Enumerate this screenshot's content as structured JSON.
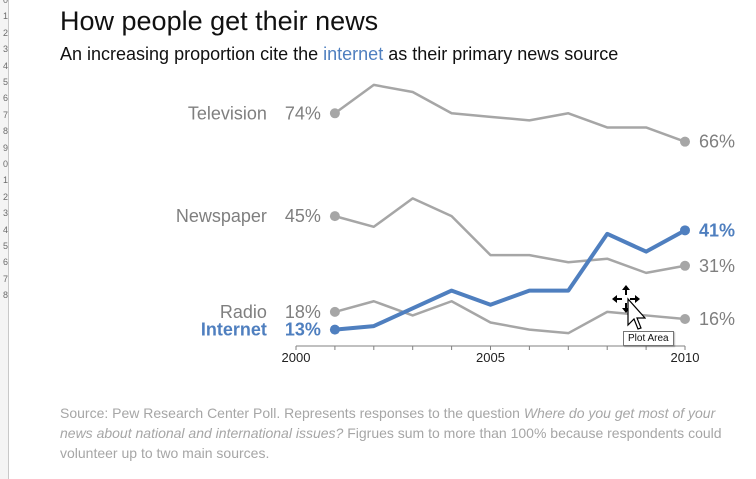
{
  "row_numbers": [
    "0",
    "1",
    "2",
    "3",
    "4",
    "5",
    "6",
    "7",
    "8",
    "9",
    "0",
    "1",
    "2",
    "3",
    "4",
    "5",
    "6",
    "7",
    "8"
  ],
  "title": "How people get their news",
  "subtitle": {
    "before": "An increasing proportion cite the ",
    "highlight": "internet",
    "after": " as their primary news source"
  },
  "colors": {
    "gray_series": "#a6a6a6",
    "internet_series": "#4f7fbf",
    "label_gray": "#7f7f7f",
    "axis": "#808080"
  },
  "chart_data": {
    "type": "line",
    "title": "How people get their news",
    "xlabel": "",
    "ylabel": "",
    "x": [
      2001,
      2002,
      2003,
      2004,
      2005,
      2006,
      2007,
      2008,
      2009,
      2010
    ],
    "x_ticks": [
      "2000",
      "2005",
      "2010"
    ],
    "xlim": [
      2000,
      2010
    ],
    "ylim": [
      5,
      80
    ],
    "grid": false,
    "legend": "none (direct labels)",
    "series": [
      {
        "name": "Television",
        "start_label": "74%",
        "end_label": "66%",
        "color": "#a6a6a6",
        "highlight": false,
        "values": [
          74,
          82,
          80,
          74,
          73,
          72,
          74,
          70,
          70,
          66
        ]
      },
      {
        "name": "Newspaper",
        "start_label": "45%",
        "end_label": "31%",
        "color": "#a6a6a6",
        "highlight": false,
        "values": [
          45,
          42,
          50,
          45,
          34,
          34,
          32,
          33,
          29,
          31
        ]
      },
      {
        "name": "Radio",
        "start_label": "18%",
        "end_label": "16%",
        "color": "#a6a6a6",
        "highlight": false,
        "values": [
          18,
          21,
          17,
          21,
          15,
          13,
          12,
          18,
          17,
          16
        ]
      },
      {
        "name": "Internet",
        "start_label": "13%",
        "end_label": "41%",
        "color": "#4f7fbf",
        "highlight": true,
        "values": [
          13,
          14,
          19,
          24,
          20,
          24,
          24,
          40,
          35,
          41
        ]
      }
    ]
  },
  "source": {
    "prefix": "Source: Pew Research Center Poll. Represents responses to the question ",
    "question": "Where do you get most of your news about national and international issues?",
    "suffix": "  Figrues sum to more than 100% because respondents could volunteer up to two main sources."
  },
  "tooltip": "Plot Area",
  "cursor_icon": "move-cursor-icon"
}
